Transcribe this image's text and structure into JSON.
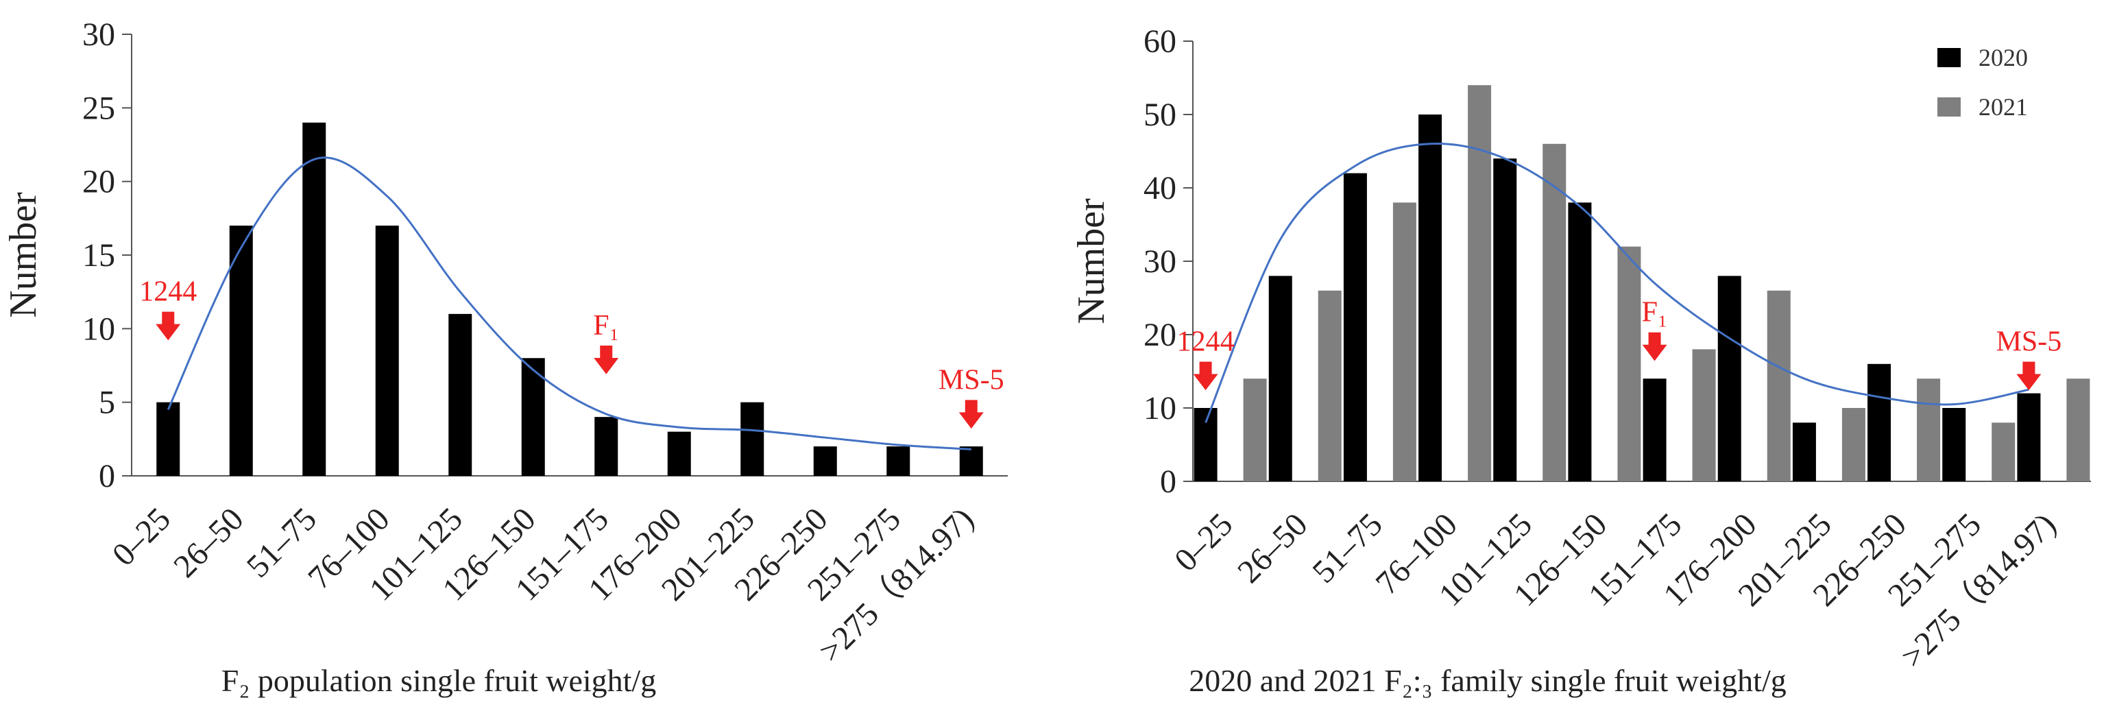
{
  "chart_data": [
    {
      "type": "bar",
      "title": "",
      "xlabel": "F₂ population single fruit weight/g",
      "ylabel": "Number",
      "ylim": [
        0,
        30
      ],
      "yticks": [
        0,
        5,
        10,
        15,
        20,
        25,
        30
      ],
      "categories": [
        "0–25",
        "26–50",
        "51–75",
        "76–100",
        "101–125",
        "126–150",
        "151–175",
        "176–200",
        "201–225",
        "226–250",
        "251–275",
        ">275（814.97)"
      ],
      "series": [
        {
          "name": "F2",
          "color": "#000000",
          "values": [
            5,
            17,
            24,
            17,
            11,
            8,
            4,
            3,
            5,
            2,
            2,
            2
          ]
        }
      ],
      "trendline": {
        "color": "#4472c4",
        "values": [
          4.5,
          15.5,
          21.5,
          19,
          12.5,
          7.2,
          4.2,
          3.3,
          3.1,
          2.6,
          2.1,
          1.8
        ]
      },
      "annotations": [
        {
          "label": "1244",
          "category_index": 0,
          "value": 10.5,
          "color": "#ee2222"
        },
        {
          "label": "F₁",
          "category_index": 6,
          "value": 8.2,
          "color": "#ee2222"
        },
        {
          "label": "MS-5",
          "category_index": 11,
          "value": 4.5,
          "color": "#ee2222"
        }
      ]
    },
    {
      "type": "bar",
      "title": "",
      "xlabel": "2020 and 2021 F₂:₃ family single fruit weight/g",
      "ylabel": "Number",
      "ylim": [
        0,
        60
      ],
      "yticks": [
        0,
        10,
        20,
        30,
        40,
        50,
        60
      ],
      "categories": [
        "0–25",
        "26–50",
        "51–75",
        "76–100",
        "101–125",
        "126–150",
        "151–175",
        "176–200",
        "201–225",
        "226–250",
        "251–275",
        ">275（814.97)"
      ],
      "series": [
        {
          "name": "2020",
          "color": "#000000",
          "values": [
            10,
            28,
            42,
            50,
            44,
            38,
            14,
            28,
            8,
            16,
            10,
            12
          ]
        },
        {
          "name": "2021",
          "color": "#7f7f7f",
          "values": [
            14,
            26,
            38,
            54,
            46,
            32,
            18,
            26,
            10,
            14,
            8,
            14
          ]
        }
      ],
      "legend": "top-right",
      "trendline": {
        "color": "#4472c4",
        "values": [
          8,
          33,
          43,
          46,
          44,
          37.5,
          27,
          19.5,
          14,
          11.5,
          10.5,
          12.5
        ]
      },
      "annotations": [
        {
          "label": "1244",
          "category_index": 0,
          "value": 15,
          "color": "#ee2222"
        },
        {
          "label": "F₁",
          "category_index": 6,
          "value": 19,
          "color": "#ee2222"
        },
        {
          "label": "MS-5",
          "category_index": 11,
          "value": 15,
          "color": "#ee2222"
        }
      ]
    }
  ]
}
